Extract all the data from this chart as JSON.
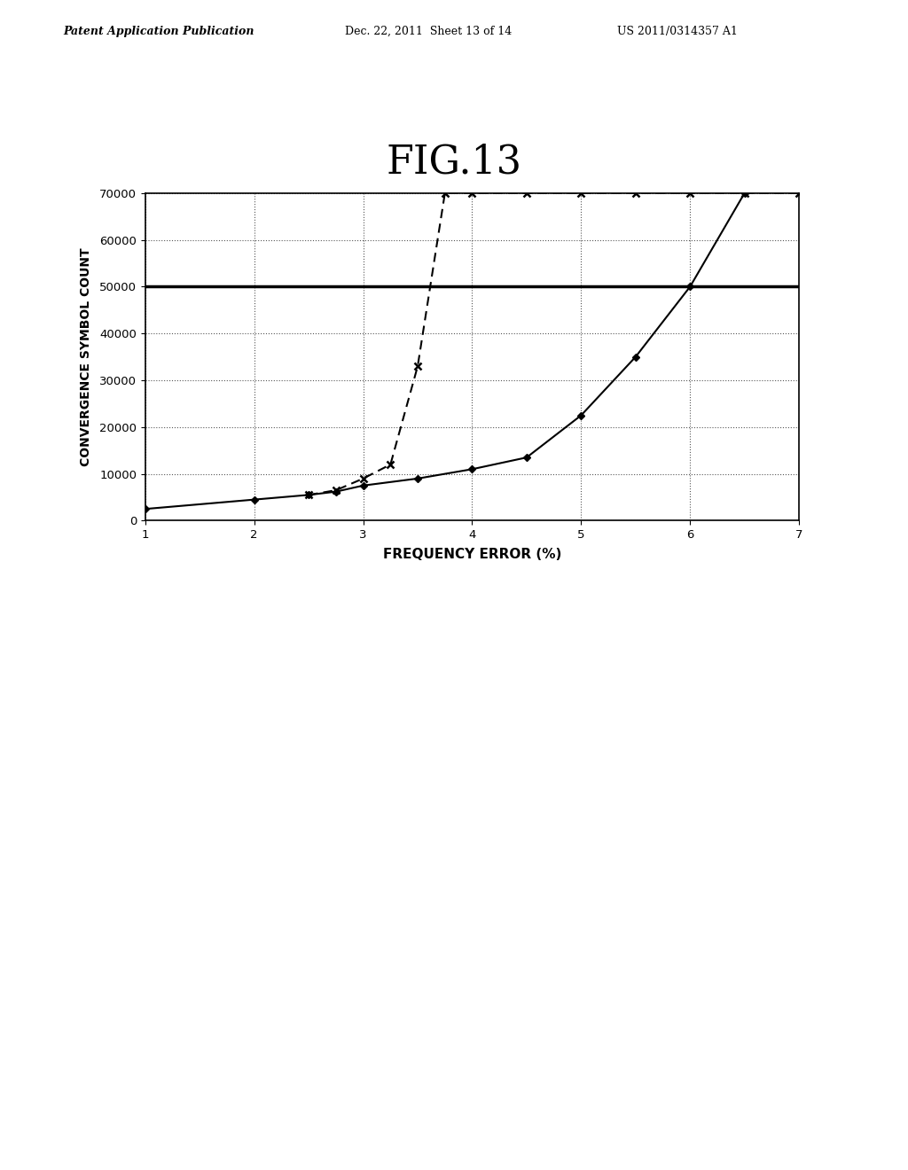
{
  "title": "FIG.13",
  "xlabel": "FREQUENCY ERROR (%)",
  "ylabel": "CONVERGENCE SYMBOL COUNT",
  "xlim": [
    1,
    7
  ],
  "ylim": [
    0,
    70000
  ],
  "yticks": [
    0,
    10000,
    20000,
    30000,
    40000,
    50000,
    60000,
    70000
  ],
  "xticks": [
    1,
    2,
    3,
    4,
    5,
    6,
    7
  ],
  "background_color": "#ffffff",
  "solid_line_color": "#000000",
  "dashed_line_color": "#000000",
  "hline_y": 50000,
  "hline_color": "#000000",
  "solid_x": [
    1.0,
    2.0,
    2.5,
    2.75,
    3.0,
    3.5,
    4.0,
    4.5,
    5.0,
    5.5,
    6.0,
    6.5
  ],
  "solid_y": [
    2500,
    4500,
    5500,
    6200,
    7500,
    9000,
    11000,
    13500,
    22500,
    35000,
    50000,
    70000
  ],
  "dashed_x": [
    2.5,
    2.75,
    3.0,
    3.25,
    3.5,
    3.75,
    4.0,
    4.5,
    5.0,
    5.5,
    6.0,
    6.5,
    7.0
  ],
  "dashed_y": [
    5500,
    6500,
    9000,
    12000,
    33000,
    70000,
    70000,
    70000,
    70000,
    70000,
    70000,
    70000,
    70000
  ],
  "header_left": "Patent Application Publication",
  "header_center": "Dec. 22, 2011  Sheet 13 of 14",
  "header_right": "US 2011/0314357 A1"
}
